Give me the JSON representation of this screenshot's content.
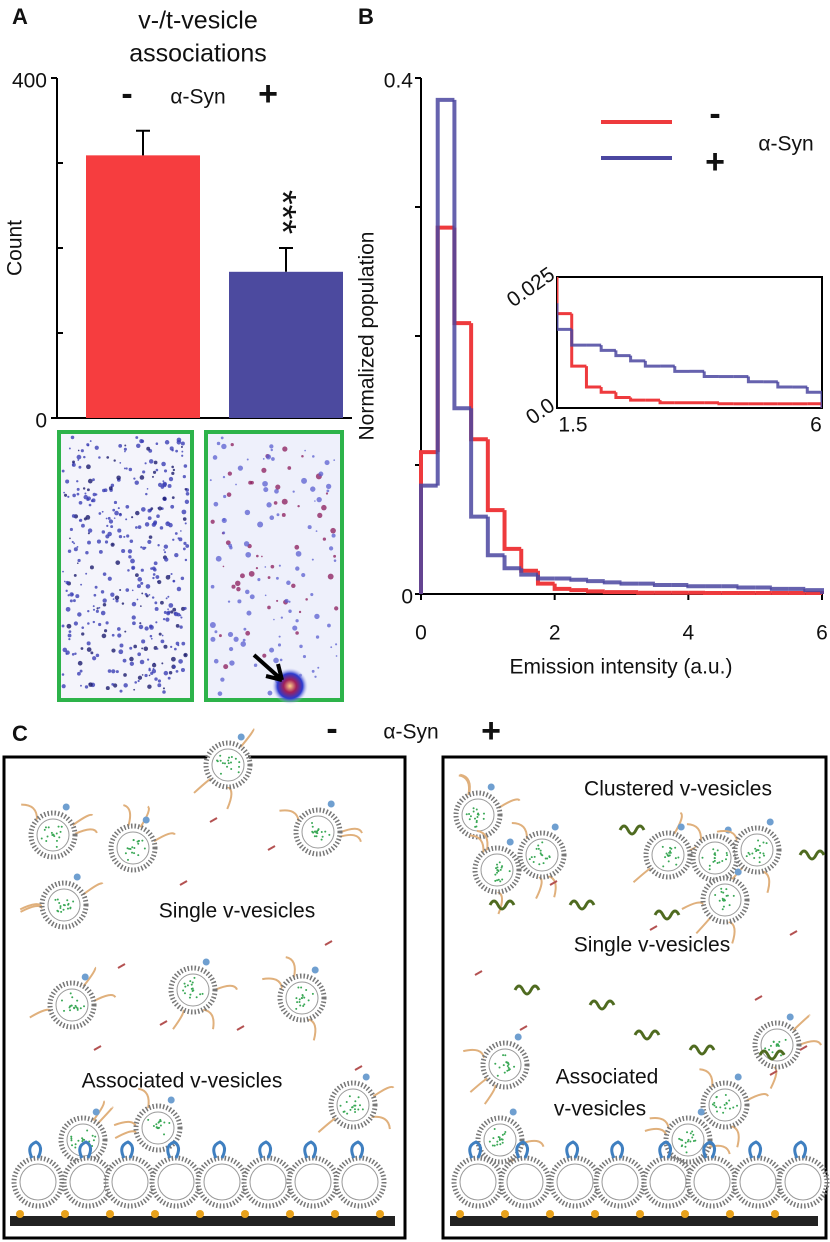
{
  "panel_labels": [
    "A",
    "B",
    "C"
  ],
  "chart_data": [
    {
      "type": "bar",
      "title": [
        "v-/t-vesicle",
        "associations"
      ],
      "y_label": "Count",
      "categories": [
        "-",
        "+"
      ],
      "category_label": "α-Syn",
      "values": [
        309,
        172
      ],
      "errors": [
        29,
        28
      ],
      "colors": [
        "#f63d3f",
        "#4c4a9f"
      ],
      "annotation": "***",
      "ylim": [
        0,
        400
      ],
      "yticks": [
        0,
        400
      ],
      "minor_yticks": [
        100,
        200,
        300
      ]
    },
    {
      "type": "histogram",
      "x_label": "Emission intensity (a.u.)",
      "y_label": "Normalized population",
      "bins": [
        0,
        0.25,
        0.5,
        0.75,
        1,
        1.25,
        1.5,
        1.75,
        2,
        2.25,
        2.5,
        2.75,
        3,
        3.25,
        3.5,
        3.75,
        4,
        4.25,
        4.5,
        4.75,
        5,
        5.25,
        5.5,
        5.75,
        6
      ],
      "series": [
        {
          "name": "-",
          "color": "#ee3a3d",
          "values": [
            0.11,
            0.284,
            0.21,
            0.12,
            0.065,
            0.035,
            0.018,
            0.008,
            0.004,
            0.003,
            0.002,
            0.0015,
            0.0015,
            0.001,
            0.001,
            0.001,
            0.001,
            0.0008,
            0.0008,
            0.0008,
            0.0008,
            0.0008,
            0.0008,
            0.0008
          ]
        },
        {
          "name": "+",
          "color": "#4b47a0",
          "values": [
            0.084,
            0.383,
            0.144,
            0.06,
            0.03,
            0.02,
            0.015,
            0.012,
            0.012,
            0.011,
            0.01,
            0.009,
            0.008,
            0.008,
            0.007,
            0.007,
            0.006,
            0.006,
            0.006,
            0.005,
            0.005,
            0.004,
            0.004,
            0.003
          ]
        }
      ],
      "legend_title": "α-Syn",
      "legend": "top-right",
      "xlim": [
        0,
        6
      ],
      "ylim": [
        0,
        0.4
      ],
      "xticks": [
        0,
        2,
        4,
        6
      ],
      "yticks": [
        0,
        0.4
      ],
      "minor_yticks": [
        0.1,
        0.2,
        0.3
      ],
      "inset": {
        "xlim": [
          1.5,
          6
        ],
        "ylim": [
          0,
          0.025
        ],
        "xticks": [
          1.5,
          6
        ],
        "yticks": [
          {
            "value": 0,
            "label": "0.0"
          },
          0.025
        ]
      }
    }
  ],
  "diagram": {
    "header": {
      "minus": "-",
      "label": "α-Syn",
      "plus": "+"
    },
    "left": {
      "single": "Single v-vesicles",
      "associated": "Associated v-vesicles"
    },
    "right": {
      "clustered": "Clustered v-vesicles",
      "single": "Single v-vesicles",
      "associated": [
        "Associated",
        "v-vesicles"
      ]
    }
  }
}
